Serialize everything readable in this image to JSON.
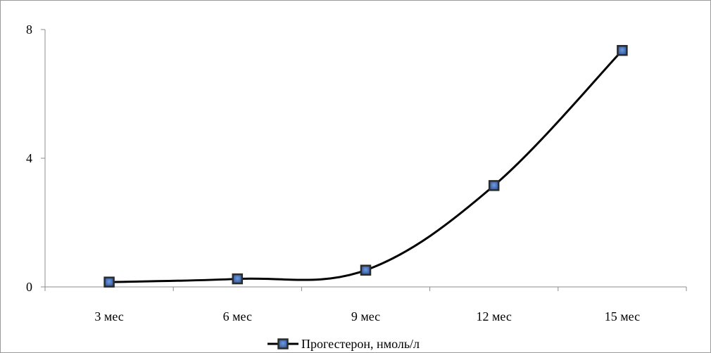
{
  "chart_data": {
    "type": "line",
    "categories": [
      "3 мес",
      "6 мес",
      "9 мес",
      "12 мес",
      "15 мес"
    ],
    "series": [
      {
        "name": "Прогестерон, нмоль/л",
        "values": [
          0.15,
          0.25,
          0.52,
          3.15,
          7.35
        ],
        "color": "#000000",
        "marker_color": "#2f5597",
        "marker": "square",
        "smooth": true
      }
    ],
    "ylim": [
      0,
      8
    ],
    "yticks": [
      0,
      4,
      8
    ],
    "yticks_labels": [
      "0",
      "4",
      "8"
    ],
    "grid": false,
    "legend": "bottom"
  }
}
